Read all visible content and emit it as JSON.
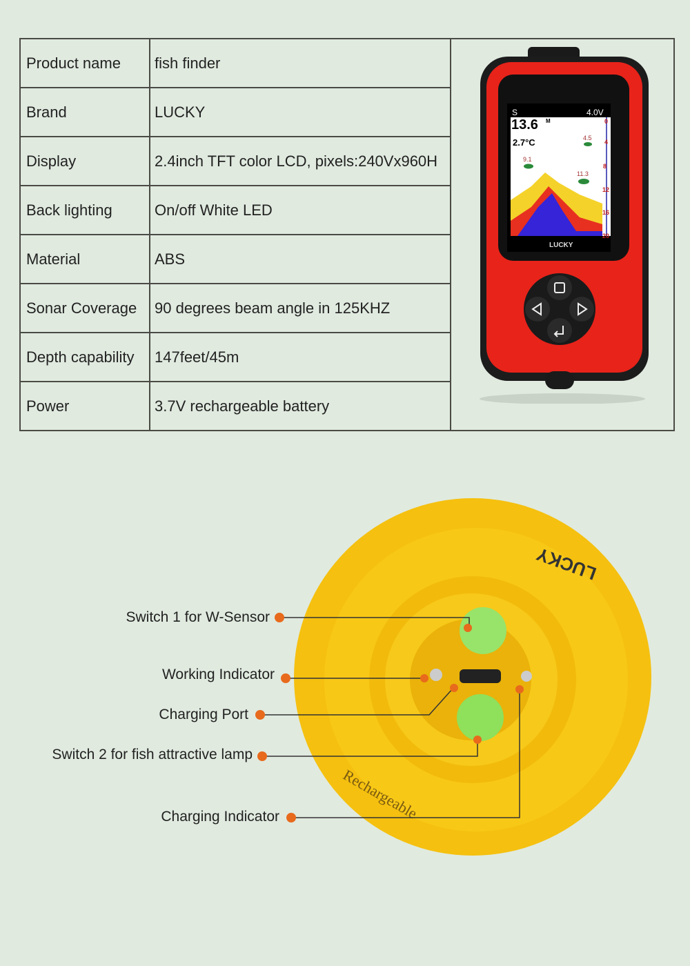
{
  "specs": [
    {
      "label": "Product name",
      "value": "fish finder"
    },
    {
      "label": "Brand",
      "value": "LUCKY"
    },
    {
      "label": "Display",
      "value": "2.4inch TFT color LCD, pixels:240Vx960H"
    },
    {
      "label": "Back lighting",
      "value": "On/off White LED"
    },
    {
      "label": "Material",
      "value": "ABS"
    },
    {
      "label": "Sonar Coverage",
      "value": "90 degrees beam angle in 125KHZ"
    },
    {
      "label": "Depth capability",
      "value": "147feet/45m"
    },
    {
      "label": "Power",
      "value": "3.7V rechargeable battery"
    }
  ],
  "device_screen": {
    "voltage": "4.0V",
    "depth": "13.6",
    "depth_unit": "M",
    "temp": "2.7°C",
    "fish": [
      "4.5",
      "9.1",
      "11.3"
    ],
    "scale": [
      "0",
      "4",
      "8",
      "12",
      "16",
      "20"
    ],
    "logo": "LUCKY"
  },
  "sensor": {
    "logo": "LUCKY",
    "side_text": "Rechargeable"
  },
  "callouts": [
    "Switch 1 for W-Sensor",
    "Working Indicator",
    "Charging Port",
    "Switch 2 for fish attractive lamp",
    "Charging Indicator"
  ],
  "colors": {
    "background": "#e0eadf",
    "device_red": "#e8231a",
    "sensor_yellow": "#f7c612",
    "dot": "#e86a1c",
    "button_green": "#8fe05a"
  }
}
